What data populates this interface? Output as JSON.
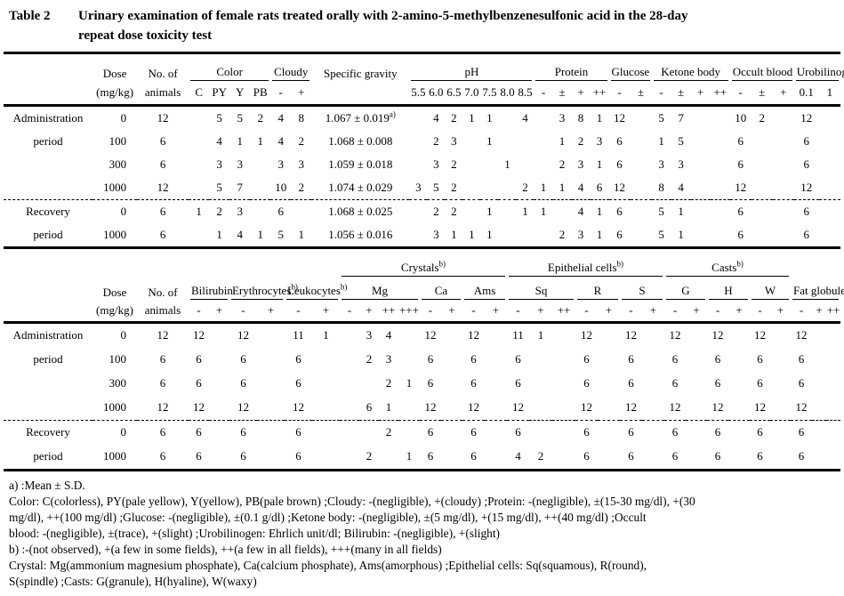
{
  "title": {
    "label": "Table 2",
    "line1": "Urinary examination of female rats treated orally with 2-amino-5-methylbenzenesulfonic acid in the 28-day",
    "line2": "repeat dose toxicity test"
  },
  "table1": {
    "head": {
      "dose": [
        "Dose",
        "(mg/kg)"
      ],
      "animals": [
        "No. of",
        "animals"
      ],
      "groups": [
        {
          "label": "Color",
          "subs": [
            "C",
            "PY",
            "Y",
            "PB"
          ]
        },
        {
          "label": "Cloudy",
          "subs": [
            "-",
            "+"
          ]
        },
        {
          "label": "Specific gravity",
          "subs": []
        },
        {
          "label": "pH",
          "subs": [
            "5.5",
            "6.0",
            "6.5",
            "7.0",
            "7.5",
            "8.0",
            "8.5"
          ]
        },
        {
          "label": "Protein",
          "subs": [
            "-",
            "±",
            "+",
            "++"
          ]
        },
        {
          "label": "Glucose",
          "subs": [
            "-",
            "±"
          ]
        },
        {
          "label": "Ketone body",
          "subs": [
            "-",
            "±",
            "+",
            "++"
          ]
        },
        {
          "label": "Occult blood",
          "subs": [
            "-",
            "±",
            "+"
          ]
        },
        {
          "label": "Urobilinogen",
          "subs": [
            "0.1",
            "1"
          ]
        }
      ]
    },
    "sections": [
      {
        "rows": [
          {
            "label": "Administration",
            "dose": "0",
            "n": "12",
            "cells": [
              "",
              "5",
              "5",
              "2",
              "4",
              "8",
              {
                "t": "1.067 ± 0.019",
                "sup": "a)"
              },
              "",
              "4",
              "2",
              "1",
              "1",
              "",
              "4",
              "",
              "3",
              "8",
              "1",
              "12",
              "",
              "5",
              "7",
              "",
              "",
              "10",
              "2",
              "",
              "12",
              ""
            ]
          },
          {
            "label": "period",
            "dose": "100",
            "n": "6",
            "cells": [
              "",
              "4",
              "1",
              "1",
              "4",
              "2",
              "1.068 ± 0.008",
              "",
              "2",
              "3",
              "",
              "1",
              "",
              "",
              "",
              "1",
              "2",
              "3",
              "6",
              "",
              "1",
              "5",
              "",
              "",
              "6",
              "",
              "",
              "6",
              ""
            ]
          },
          {
            "label": "",
            "dose": "300",
            "n": "6",
            "cells": [
              "",
              "3",
              "3",
              "",
              "3",
              "3",
              "1.059 ± 0.018",
              "",
              "3",
              "2",
              "",
              "",
              "1",
              "",
              "",
              "2",
              "3",
              "1",
              "6",
              "",
              "3",
              "3",
              "",
              "",
              "6",
              "",
              "",
              "6",
              ""
            ]
          },
          {
            "label": "",
            "dose": "1000",
            "n": "12",
            "cells": [
              "",
              "5",
              "7",
              "",
              "10",
              "2",
              "1.074 ± 0.029",
              "3",
              "5",
              "2",
              "",
              "",
              "",
              "2",
              "1",
              "1",
              "4",
              "6",
              "12",
              "",
              "8",
              "4",
              "",
              "",
              "12",
              "",
              "",
              "12",
              ""
            ]
          }
        ]
      },
      {
        "rows": [
          {
            "label": "Recovery",
            "dose": "0",
            "n": "6",
            "cells": [
              "1",
              "2",
              "3",
              "",
              "6",
              "",
              "1.068 ± 0.025",
              "",
              "2",
              "2",
              "",
              "1",
              "",
              "1",
              "1",
              "",
              "4",
              "1",
              "6",
              "",
              "5",
              "1",
              "",
              "",
              "6",
              "",
              "",
              "6",
              ""
            ]
          },
          {
            "label": "period",
            "dose": "1000",
            "n": "6",
            "cells": [
              "",
              "1",
              "4",
              "1",
              "5",
              "1",
              "1.056 ± 0.016",
              "",
              "3",
              "1",
              "1",
              "1",
              "",
              "",
              "",
              "2",
              "3",
              "1",
              "6",
              "",
              "5",
              "1",
              "",
              "",
              "6",
              "",
              "",
              "6",
              ""
            ]
          }
        ]
      }
    ]
  },
  "table2": {
    "head": {
      "dose": [
        "Dose",
        "(mg/kg)"
      ],
      "animals": [
        "No. of",
        "animals"
      ],
      "topgroups": [
        {
          "label": "Crystals",
          "sup": "b)",
          "members": [
            "Mg",
            "Ca",
            "Ams"
          ]
        },
        {
          "label": "Epithelial cells",
          "sup": "b)",
          "members": [
            "Sq",
            "R",
            "S"
          ]
        },
        {
          "label": "Casts",
          "sup": "b)",
          "members": [
            "G",
            "H",
            "W"
          ]
        }
      ],
      "groups": [
        {
          "label": "Bilirubin",
          "subs": [
            "-",
            "+"
          ]
        },
        {
          "label": "Erythrocytes",
          "sup": "b)",
          "subs": [
            "-",
            "+"
          ]
        },
        {
          "label": "Leukocytes",
          "sup": "b)",
          "subs": [
            "-",
            "+"
          ]
        },
        {
          "label": "Mg",
          "subs": [
            "-",
            "+",
            "++",
            "+++"
          ]
        },
        {
          "label": "Ca",
          "subs": [
            "-",
            "+"
          ]
        },
        {
          "label": "Ams",
          "subs": [
            "-",
            "+"
          ]
        },
        {
          "label": "Sq",
          "subs": [
            "-",
            "+",
            "++"
          ]
        },
        {
          "label": "R",
          "subs": [
            "-",
            "+"
          ]
        },
        {
          "label": "S",
          "subs": [
            "-",
            "+"
          ]
        },
        {
          "label": "G",
          "subs": [
            "-",
            "+"
          ]
        },
        {
          "label": "H",
          "subs": [
            "-",
            "+"
          ]
        },
        {
          "label": "W",
          "subs": [
            "-",
            "+"
          ]
        },
        {
          "label": "Fat globules",
          "sup": "b)",
          "subs": [
            "-",
            "+",
            "++"
          ]
        }
      ]
    },
    "sections": [
      {
        "rows": [
          {
            "label": "Administration",
            "dose": "0",
            "n": "12",
            "cells": [
              "12",
              "",
              "12",
              "",
              "11",
              "1",
              "",
              "3",
              "4",
              "",
              "12",
              "",
              "12",
              "",
              "11",
              "1",
              "",
              "12",
              "",
              "12",
              "",
              "12",
              "",
              "12",
              "",
              "12",
              "",
              "12",
              "",
              ""
            ]
          },
          {
            "label": "period",
            "dose": "100",
            "n": "6",
            "cells": [
              "6",
              "",
              "6",
              "",
              "6",
              "",
              "",
              "2",
              "3",
              "",
              "6",
              "",
              "6",
              "",
              "6",
              "",
              "",
              "6",
              "",
              "6",
              "",
              "6",
              "",
              "6",
              "",
              "6",
              "",
              "6",
              "",
              ""
            ]
          },
          {
            "label": "",
            "dose": "300",
            "n": "6",
            "cells": [
              "6",
              "",
              "6",
              "",
              "6",
              "",
              "",
              "",
              "2",
              "1",
              "6",
              "",
              "6",
              "",
              "6",
              "",
              "",
              "6",
              "",
              "6",
              "",
              "6",
              "",
              "6",
              "",
              "6",
              "",
              "6",
              "",
              ""
            ]
          },
          {
            "label": "",
            "dose": "1000",
            "n": "12",
            "cells": [
              "12",
              "",
              "12",
              "",
              "12",
              "",
              "",
              "6",
              "1",
              "",
              "12",
              "",
              "12",
              "",
              "12",
              "",
              "",
              "12",
              "",
              "12",
              "",
              "12",
              "",
              "12",
              "",
              "12",
              "",
              "12",
              "",
              ""
            ]
          }
        ]
      },
      {
        "rows": [
          {
            "label": "Recovery",
            "dose": "0",
            "n": "6",
            "cells": [
              "6",
              "",
              "6",
              "",
              "6",
              "",
              "",
              "",
              "2",
              "",
              "6",
              "",
              "6",
              "",
              "6",
              "",
              "",
              "6",
              "",
              "6",
              "",
              "6",
              "",
              "6",
              "",
              "6",
              "",
              "6",
              "",
              ""
            ]
          },
          {
            "label": "period",
            "dose": "1000",
            "n": "6",
            "cells": [
              "6",
              "",
              "6",
              "",
              "6",
              "",
              "",
              "2",
              "",
              "1",
              "6",
              "",
              "6",
              "",
              "4",
              "2",
              "",
              "6",
              "",
              "6",
              "",
              "6",
              "",
              "6",
              "",
              "6",
              "",
              "6",
              "",
              ""
            ]
          }
        ]
      }
    ]
  },
  "footnotes": [
    "a) :Mean ± S.D.",
    "Color: C(colorless), PY(pale yellow), Y(yellow), PB(pale brown) ;Cloudy: -(negligible), +(cloudy) ;Protein: -(negligible), ±(15-30 mg/dl), +(30",
    "mg/dl), ++(100 mg/dl) ;Glucose: -(negligible), ±(0.1 g/dl) ;Ketone body: -(negligible), ±(5 mg/dl), +(15 mg/dl), ++(40 mg/dl) ;Occult",
    "blood: -(negligible), ±(trace), +(slight) ;Urobilinogen: Ehrlich unit/dl; Bilirubin: -(negligible), +(slight)",
    "b) :-(not observed), +(a few in some fields), ++(a few in all fields), +++(many in all fields)",
    "Crystal: Mg(ammonium magnesium phosphate), Ca(calcium phosphate), Ams(amorphous) ;Epithelial cells: Sq(squamous), R(round),",
    "S(spindle) ;Casts: G(granule), H(hyaline), W(waxy)"
  ]
}
